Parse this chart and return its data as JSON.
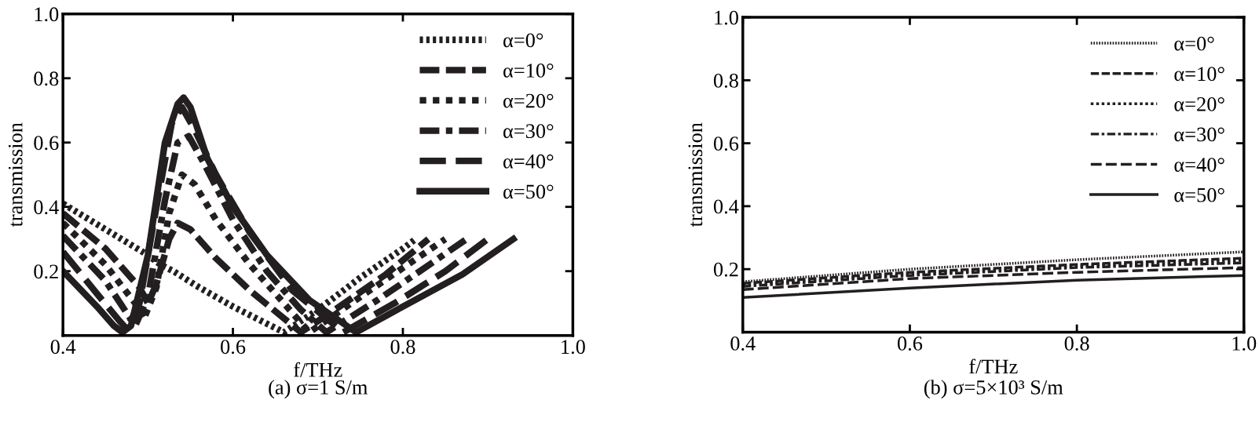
{
  "chart_data": [
    {
      "type": "line",
      "xlabel": "f/THz",
      "ylabel": "transmission",
      "annotations": [
        "(a) σ=1 S/m"
      ],
      "xlim": [
        0.4,
        1.0
      ],
      "ylim": [
        0,
        1.0
      ],
      "xticks": [
        0.4,
        0.6,
        0.8,
        {
          "value": 1.0,
          "label": "1.0"
        }
      ],
      "yticks": [
        0.2,
        0.4,
        0.6,
        0.8,
        {
          "value": 1.0,
          "label": "1.0"
        }
      ],
      "legend": "top right",
      "grid": false,
      "series": [
        {
          "name": "α=0°",
          "color": "#231f20",
          "line_style": "dotted",
          "x": [
            0.4,
            0.45,
            0.5,
            0.515,
            0.53,
            0.56,
            0.6,
            0.63,
            0.66,
            0.7,
            0.75,
            0.8,
            0.815
          ],
          "values": [
            0.41,
            0.33,
            0.25,
            0.22,
            0.2,
            0.15,
            0.09,
            0.05,
            0.01,
            0.08,
            0.18,
            0.27,
            0.3
          ]
        },
        {
          "name": "α=10°",
          "color": "#231f20",
          "line_style": "dashed",
          "x": [
            0.4,
            0.45,
            0.49,
            0.5,
            0.51,
            0.525,
            0.535,
            0.55,
            0.58,
            0.62,
            0.68,
            0.72,
            0.78,
            0.83
          ],
          "values": [
            0.38,
            0.27,
            0.15,
            0.1,
            0.16,
            0.3,
            0.35,
            0.33,
            0.24,
            0.14,
            0.01,
            0.08,
            0.19,
            0.3
          ]
        },
        {
          "name": "α=20°",
          "color": "#231f20",
          "line_style": "square",
          "x": [
            0.4,
            0.45,
            0.485,
            0.495,
            0.51,
            0.525,
            0.54,
            0.555,
            0.58,
            0.62,
            0.66,
            0.69,
            0.75,
            0.8,
            0.85
          ],
          "values": [
            0.35,
            0.22,
            0.1,
            0.05,
            0.15,
            0.38,
            0.5,
            0.47,
            0.36,
            0.22,
            0.1,
            0.01,
            0.12,
            0.21,
            0.3
          ]
        },
        {
          "name": "α=30°",
          "color": "#231f20",
          "line_style": "dashdot",
          "x": [
            0.4,
            0.45,
            0.475,
            0.485,
            0.5,
            0.52,
            0.535,
            0.548,
            0.565,
            0.6,
            0.64,
            0.68,
            0.71,
            0.77,
            0.82,
            0.875
          ],
          "values": [
            0.31,
            0.17,
            0.07,
            0.03,
            0.12,
            0.42,
            0.6,
            0.62,
            0.54,
            0.36,
            0.2,
            0.08,
            0.01,
            0.11,
            0.2,
            0.3
          ]
        },
        {
          "name": "α=40°",
          "color": "#231f20",
          "line_style": "longdash",
          "x": [
            0.4,
            0.44,
            0.465,
            0.475,
            0.49,
            0.51,
            0.528,
            0.54,
            0.555,
            0.58,
            0.62,
            0.67,
            0.73,
            0.79,
            0.85,
            0.9
          ],
          "values": [
            0.26,
            0.13,
            0.05,
            0.02,
            0.1,
            0.4,
            0.66,
            0.71,
            0.64,
            0.5,
            0.32,
            0.14,
            0.01,
            0.1,
            0.2,
            0.3
          ]
        },
        {
          "name": "α=50°",
          "color": "#231f20",
          "line_style": "solid",
          "x": [
            0.4,
            0.44,
            0.46,
            0.47,
            0.48,
            0.5,
            0.52,
            0.535,
            0.542,
            0.55,
            0.57,
            0.6,
            0.64,
            0.69,
            0.745,
            0.8,
            0.87,
            0.93
          ],
          "values": [
            0.2,
            0.09,
            0.03,
            0.01,
            0.03,
            0.25,
            0.6,
            0.72,
            0.74,
            0.71,
            0.55,
            0.4,
            0.25,
            0.11,
            0.01,
            0.09,
            0.19,
            0.3
          ]
        }
      ]
    },
    {
      "type": "line",
      "xlabel": "f/THz",
      "ylabel": "transmission",
      "annotations": [
        "(b) σ=5×10³ S/m"
      ],
      "xlim": [
        0.4,
        1.0
      ],
      "ylim": [
        0,
        1.0
      ],
      "xticks": [
        0.4,
        0.6,
        0.8,
        {
          "value": 1.0,
          "label": "1.0"
        }
      ],
      "yticks": [
        0.2,
        0.4,
        0.6,
        0.8,
        {
          "value": 1.0,
          "label": "1.0"
        }
      ],
      "legend": "top right",
      "grid": false,
      "series": [
        {
          "name": "α=0°",
          "color": "#231f20",
          "line_style": "dotted",
          "x": [
            0.4,
            0.6,
            0.8,
            1.0
          ],
          "values": [
            0.16,
            0.2,
            0.23,
            0.255
          ]
        },
        {
          "name": "α=10°",
          "color": "#231f20",
          "line_style": "dashed",
          "x": [
            0.4,
            0.6,
            0.8,
            1.0
          ],
          "values": [
            0.155,
            0.19,
            0.215,
            0.235
          ]
        },
        {
          "name": "α=20°",
          "color": "#231f20",
          "line_style": "square",
          "x": [
            0.4,
            0.6,
            0.8,
            1.0
          ],
          "values": [
            0.15,
            0.185,
            0.21,
            0.228
          ]
        },
        {
          "name": "α=30°",
          "color": "#231f20",
          "line_style": "dashdot",
          "x": [
            0.4,
            0.6,
            0.8,
            1.0
          ],
          "values": [
            0.145,
            0.18,
            0.205,
            0.22
          ]
        },
        {
          "name": "α=40°",
          "color": "#231f20",
          "line_style": "longdash",
          "x": [
            0.4,
            0.6,
            0.8,
            1.0
          ],
          "values": [
            0.135,
            0.17,
            0.19,
            0.205
          ]
        },
        {
          "name": "α=50°",
          "color": "#231f20",
          "line_style": "solid",
          "x": [
            0.4,
            0.6,
            0.8,
            1.0
          ],
          "values": [
            0.11,
            0.14,
            0.165,
            0.18
          ]
        }
      ]
    }
  ]
}
